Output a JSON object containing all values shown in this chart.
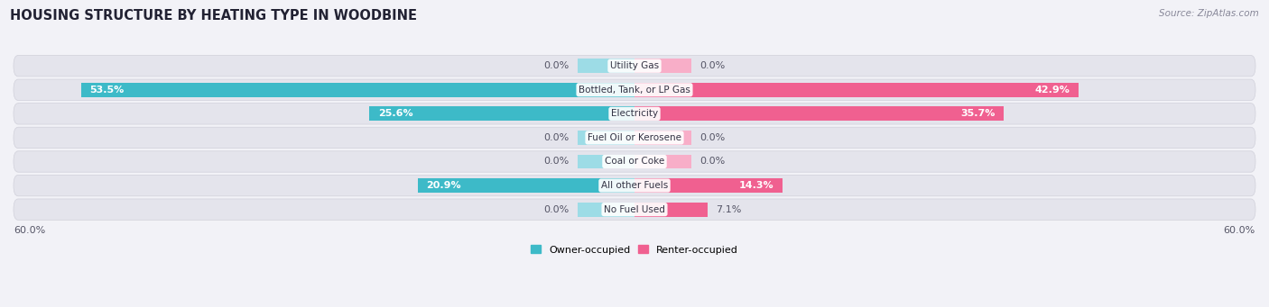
{
  "title": "HOUSING STRUCTURE BY HEATING TYPE IN WOODBINE",
  "source": "Source: ZipAtlas.com",
  "categories": [
    "Utility Gas",
    "Bottled, Tank, or LP Gas",
    "Electricity",
    "Fuel Oil or Kerosene",
    "Coal or Coke",
    "All other Fuels",
    "No Fuel Used"
  ],
  "owner_values": [
    0.0,
    53.5,
    25.6,
    0.0,
    0.0,
    20.9,
    0.0
  ],
  "renter_values": [
    0.0,
    42.9,
    35.7,
    0.0,
    0.0,
    14.3,
    7.1
  ],
  "owner_color": "#3dbac8",
  "owner_color_light": "#9ddce6",
  "renter_color": "#f06090",
  "renter_color_light": "#f8aec8",
  "axis_max": 60.0,
  "axis_min": -60.0,
  "bg_color": "#f2f2f7",
  "bar_bg_color": "#e4e4ec",
  "title_fontsize": 10.5,
  "source_fontsize": 7.5,
  "label_fontsize": 7.5,
  "bar_label_fontsize": 8,
  "legend_fontsize": 8,
  "zero_stub": 5.5,
  "label_threshold": 8
}
